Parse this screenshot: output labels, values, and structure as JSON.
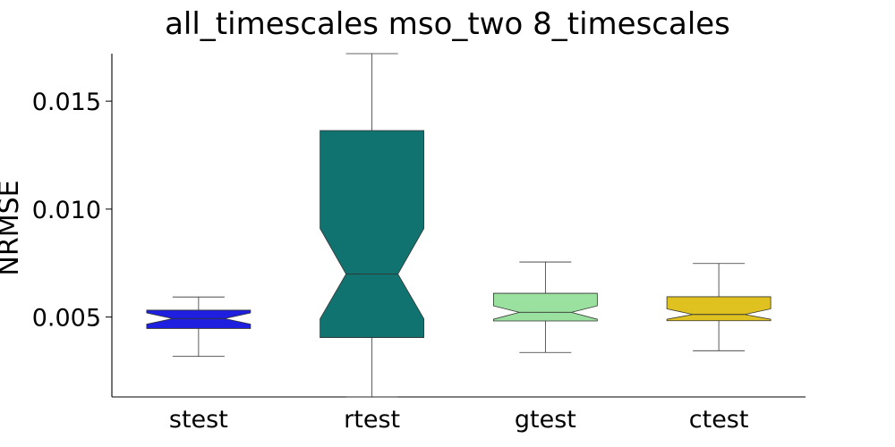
{
  "chart_data": {
    "type": "boxplot",
    "title": "all_timescales mso_two 8_timescales",
    "xlabel": "",
    "ylabel": "NRMSE",
    "ylim": [
      0.0013,
      0.0172
    ],
    "yticks": [
      0.005,
      0.01,
      0.015
    ],
    "ytick_labels": [
      "0.005",
      "0.010",
      "0.015"
    ],
    "notched": true,
    "grid": false,
    "categories": [
      "stest",
      "rtest",
      "gtest",
      "ctest"
    ],
    "boxes": [
      {
        "label": "stest",
        "color": "#1f1fe0",
        "whislo": 0.00318,
        "q1": 0.00447,
        "med": 0.00493,
        "q3": 0.00532,
        "whishi": 0.00593,
        "notchlo": 0.00467,
        "notchhi": 0.00519
      },
      {
        "label": "rtest",
        "color": "#107370",
        "whislo": 0.0013,
        "q1": 0.00405,
        "med": 0.00699,
        "q3": 0.01364,
        "whishi": 0.0172,
        "notchlo": 0.00492,
        "notchhi": 0.0091
      },
      {
        "label": "gtest",
        "color": "#9ae09e",
        "whislo": 0.00336,
        "q1": 0.00482,
        "med": 0.00522,
        "q3": 0.0061,
        "whishi": 0.00755,
        "notchlo": 0.0049,
        "notchhi": 0.00552
      },
      {
        "label": "ctest",
        "color": "#dfc220",
        "whislo": 0.00344,
        "q1": 0.00483,
        "med": 0.00512,
        "q3": 0.00594,
        "whishi": 0.00748,
        "notchlo": 0.0049,
        "notchhi": 0.00538
      }
    ]
  }
}
